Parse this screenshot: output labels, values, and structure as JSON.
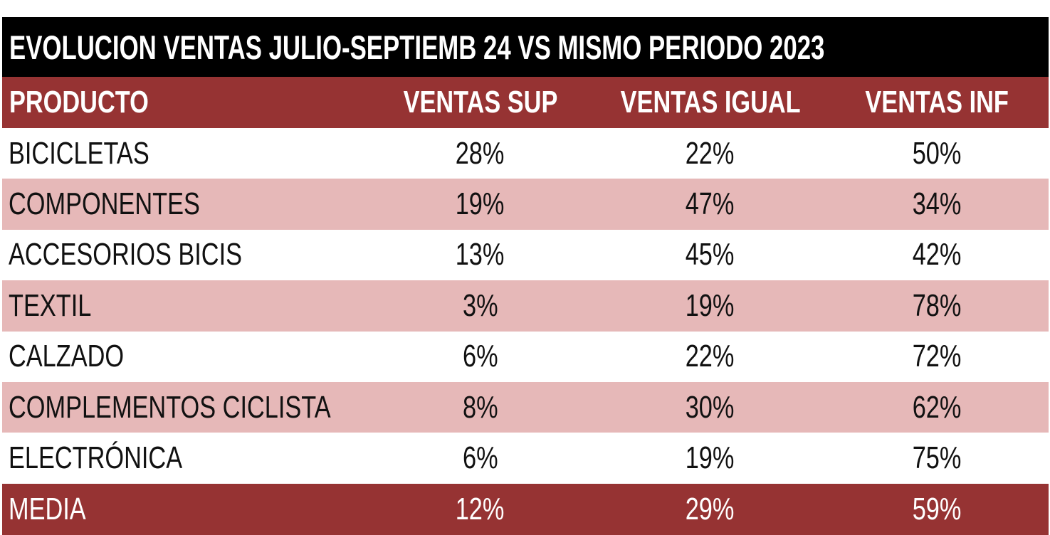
{
  "chart_data": {
    "type": "table",
    "title": "EVOLUCION VENTAS JULIO-SEPTIEMB 24 VS MISMO PERIODO 2023",
    "columns": [
      "PRODUCTO",
      "VENTAS SUP",
      "VENTAS IGUAL",
      "VENTAS INF"
    ],
    "rows": [
      [
        "BICICLETAS",
        "28%",
        "22%",
        "50%"
      ],
      [
        "COMPONENTES",
        "19%",
        "47%",
        "34%"
      ],
      [
        "ACCESORIOS BICIS",
        "13%",
        "45%",
        "42%"
      ],
      [
        "TEXTIL",
        "3%",
        "19%",
        "78%"
      ],
      [
        "CALZADO",
        "6%",
        "22%",
        "72%"
      ],
      [
        "COMPLEMENTOS CICLISTA",
        "8%",
        "30%",
        "62%"
      ],
      [
        "ELECTRÓNICA",
        "6%",
        "19%",
        "75%"
      ]
    ],
    "footer": [
      "MEDIA",
      "12%",
      "29%",
      "59%"
    ]
  },
  "colors": {
    "title_background": "#000000",
    "header_background": "#963333",
    "alt_row_background": "#e6b8b8",
    "row_background": "#ffffff",
    "header_text": "#ffffff",
    "body_text": "#111111"
  }
}
